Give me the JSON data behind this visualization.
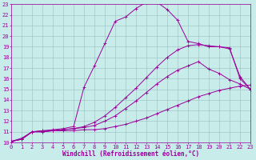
{
  "xlabel": "Windchill (Refroidissement éolien,°C)",
  "bg_color": "#c8ecea",
  "line_color": "#990099",
  "grid_color": "#9bbfbf",
  "xmin": 0,
  "xmax": 23,
  "ymin": 10,
  "ymax": 23,
  "line1_x": [
    0,
    1,
    2,
    3,
    4,
    5,
    6,
    7,
    8,
    9,
    10,
    11,
    12,
    13,
    14,
    15,
    16,
    17,
    18,
    19,
    20,
    21,
    22,
    23
  ],
  "line1_y": [
    10.1,
    10.3,
    11.0,
    11.0,
    11.1,
    11.1,
    11.1,
    11.2,
    11.2,
    11.3,
    11.5,
    11.7,
    12.0,
    12.3,
    12.7,
    13.1,
    13.5,
    13.9,
    14.3,
    14.6,
    14.9,
    15.1,
    15.3,
    15.4
  ],
  "line2_x": [
    0,
    1,
    2,
    3,
    4,
    5,
    6,
    7,
    8,
    9,
    10,
    11,
    12,
    13,
    14,
    15,
    16,
    17,
    18,
    19,
    20,
    21,
    22,
    23
  ],
  "line2_y": [
    10.1,
    10.3,
    11.0,
    11.0,
    11.1,
    11.2,
    11.3,
    11.4,
    11.6,
    12.0,
    12.5,
    13.2,
    13.9,
    14.7,
    15.5,
    16.2,
    16.8,
    17.2,
    17.6,
    16.9,
    16.5,
    15.9,
    15.5,
    15.0
  ],
  "line2_markers": [
    7,
    8,
    9,
    10,
    11,
    12,
    13,
    14,
    15,
    16,
    17,
    18,
    19,
    20,
    21,
    22,
    23
  ],
  "line3_x": [
    0,
    1,
    2,
    3,
    4,
    5,
    6,
    7,
    8,
    9,
    10,
    11,
    12,
    13,
    14,
    15,
    16,
    17,
    18,
    19,
    20,
    21,
    22,
    23
  ],
  "line3_y": [
    10.1,
    10.3,
    11.0,
    11.1,
    11.1,
    11.2,
    11.3,
    11.5,
    11.9,
    12.5,
    13.3,
    14.2,
    15.1,
    16.1,
    17.1,
    18.0,
    18.7,
    19.1,
    19.2,
    19.1,
    19.0,
    18.8,
    16.2,
    15.0
  ],
  "line4_x": [
    0,
    1,
    2,
    3,
    4,
    5,
    6,
    7,
    8,
    9,
    10,
    11,
    12,
    13,
    14,
    15,
    16,
    17,
    18,
    19,
    20,
    21,
    22,
    23
  ],
  "line4_y": [
    10.1,
    10.4,
    11.0,
    11.1,
    11.2,
    11.3,
    11.5,
    15.2,
    17.2,
    19.3,
    21.4,
    21.8,
    22.6,
    23.2,
    23.2,
    22.5,
    21.5,
    19.5,
    19.3,
    19.0,
    19.0,
    18.9,
    16.0,
    15.0
  ],
  "fontsize_axis": 5.5,
  "fontsize_tick": 5
}
